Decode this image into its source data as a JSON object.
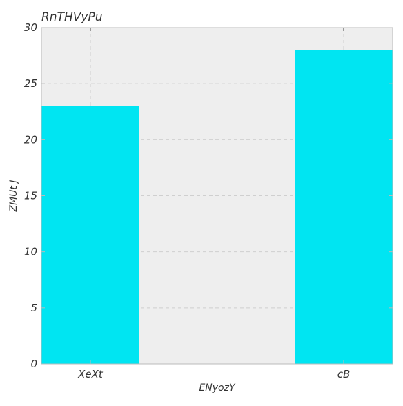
{
  "chart_data": {
    "type": "bar",
    "title": "RnTHVyPu",
    "xlabel": "ENyozY",
    "ylabel": "ZMUt J",
    "categories": [
      "XeXt",
      "cB"
    ],
    "values": [
      23,
      28
    ],
    "ylim": [
      0,
      30
    ],
    "yticks": [
      "0",
      "5",
      "10",
      "15",
      "20",
      "25",
      "30"
    ],
    "grid": true,
    "colors": {
      "bar": "#00E5F2",
      "plot_bg": "#EEEEEE",
      "grid": "#CFCFCF",
      "spine": "#BBBBBB",
      "text": "#333333"
    }
  }
}
